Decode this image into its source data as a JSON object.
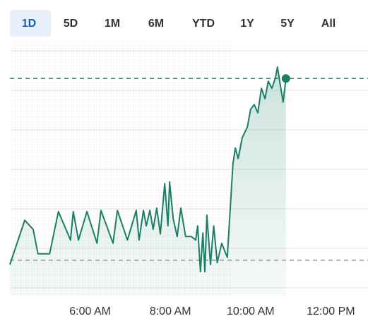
{
  "tabs": [
    "1D",
    "5D",
    "1M",
    "6M",
    "YTD",
    "1Y",
    "5Y",
    "All"
  ],
  "active_tab": 0,
  "chart_data": {
    "type": "line",
    "color": "#1b7f66",
    "x": [
      4.0,
      4.37,
      4.58,
      4.7,
      4.99,
      5.21,
      5.51,
      5.58,
      5.71,
      5.92,
      6.17,
      6.27,
      6.57,
      6.68,
      6.93,
      7.15,
      7.22,
      7.33,
      7.4,
      7.49,
      7.57,
      7.66,
      7.75,
      7.86,
      7.94,
      7.98,
      8.07,
      8.17,
      8.26,
      8.38,
      8.52,
      8.63,
      8.68,
      8.75,
      8.81,
      8.86,
      8.91,
      9.0,
      9.08,
      9.17,
      9.28,
      9.42,
      9.56,
      9.62,
      9.69,
      9.79,
      9.92,
      10.0,
      10.09,
      10.18,
      10.27,
      10.36,
      10.44,
      10.53,
      10.62,
      10.67,
      10.74,
      10.81,
      10.88
    ],
    "values": [
      5.9,
      17.1,
      14.8,
      8.6,
      8.6,
      19.3,
      12.1,
      19.3,
      12.1,
      19.3,
      11.3,
      19.6,
      11.3,
      19.6,
      12.1,
      19.6,
      12.1,
      19.6,
      15.7,
      19.6,
      14.8,
      20.2,
      13.6,
      26.4,
      15.7,
      26.8,
      17.5,
      13.0,
      20.2,
      13.0,
      13.0,
      12.1,
      15.7,
      4.1,
      13.9,
      4.1,
      18.4,
      5.9,
      15.7,
      6.4,
      11.3,
      7.7,
      31.4,
      35.4,
      32.7,
      38.0,
      40.7,
      45.2,
      46.4,
      44.3,
      50.5,
      47.9,
      52.3,
      50.5,
      53.2,
      55.9,
      51.4,
      47.0,
      53.0
    ],
    "xlim": [
      4,
      12.9
    ],
    "xticks": [
      {
        "value": 6,
        "label": "6:00 AM"
      },
      {
        "value": 8,
        "label": "8:00 AM"
      },
      {
        "value": 10,
        "label": "10:00 AM"
      },
      {
        "value": 12,
        "label": "12:00 PM"
      }
    ],
    "ylim": [
      -2,
      62
    ],
    "yticks": [
      0,
      10,
      20,
      30,
      40,
      50,
      60
    ],
    "grid": true,
    "reference_lines": [
      {
        "value": 53,
        "color": "#1b7f66"
      },
      {
        "value": 7,
        "color": "#888888"
      }
    ]
  }
}
